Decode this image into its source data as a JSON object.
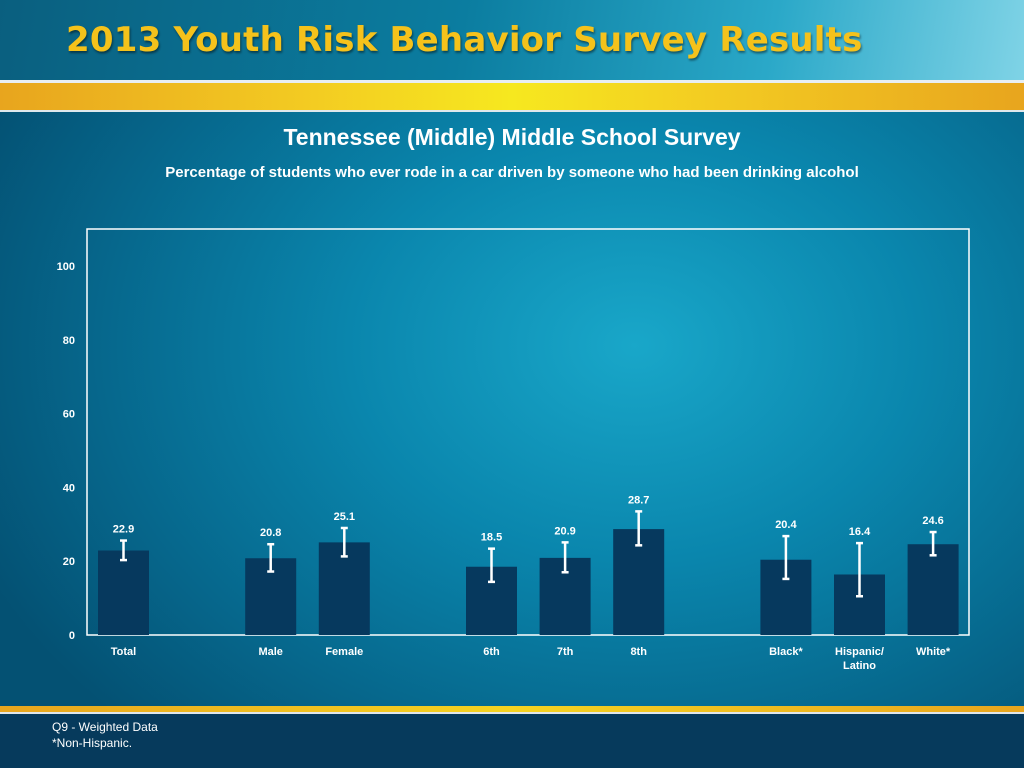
{
  "header": {
    "title": "2013 Youth Risk Behavior Survey Results"
  },
  "chart_data": {
    "type": "bar",
    "title": "Tennessee (Middle) Middle School Survey",
    "subtitle": "Percentage of students who ever rode in a car driven by someone who had been drinking alcohol",
    "categories": [
      "Total",
      "Male",
      "Female",
      "6th",
      "7th",
      "8th",
      "Black*",
      "Hispanic/ Latino",
      "White*"
    ],
    "groups": [
      [
        "Total"
      ],
      [
        "Male",
        "Female"
      ],
      [
        "6th",
        "7th",
        "8th"
      ],
      [
        "Black*",
        "Hispanic/ Latino",
        "White*"
      ]
    ],
    "values": [
      22.9,
      20.8,
      25.1,
      18.5,
      20.9,
      28.7,
      20.4,
      16.4,
      24.6
    ],
    "error_low": [
      20.3,
      17.2,
      21.3,
      14.4,
      17.0,
      24.3,
      15.2,
      10.5,
      21.6
    ],
    "error_high": [
      25.6,
      24.6,
      29.0,
      23.4,
      25.1,
      33.5,
      26.8,
      24.9,
      27.9
    ],
    "ylim": [
      0,
      100
    ],
    "yticks": [
      0,
      20,
      40,
      60,
      80,
      100
    ],
    "xlabel": "",
    "ylabel": "",
    "grid": false,
    "bar_color": "#06395e",
    "error_bar_color": "#ffffff"
  },
  "footer": {
    "notes": [
      "Q9 - Weighted Data",
      "*Non-Hispanic."
    ]
  }
}
